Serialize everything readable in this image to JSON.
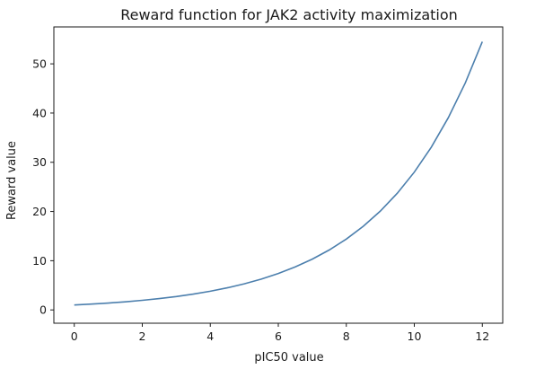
{
  "chart_data": {
    "type": "line",
    "title": "Reward function for JAK2 activity maximization",
    "xlabel": "pIC50 value",
    "ylabel": "Reward value",
    "xlim": [
      -0.6,
      12.6
    ],
    "ylim": [
      -2.7,
      57.5
    ],
    "x_ticks": [
      0,
      2,
      4,
      6,
      8,
      10,
      12
    ],
    "y_ticks": [
      0,
      10,
      20,
      30,
      40,
      50
    ],
    "grid": false,
    "legend": "none",
    "series": [
      {
        "color": "#4c7fad",
        "x": [
          0,
          0.5,
          1,
          1.5,
          2,
          2.5,
          3,
          3.5,
          4,
          4.5,
          5,
          5.5,
          6,
          6.5,
          7,
          7.5,
          8,
          8.5,
          9,
          9.5,
          10,
          10.5,
          11,
          11.5,
          12
        ],
        "y": [
          1.0,
          1.18,
          1.4,
          1.65,
          1.95,
          2.31,
          2.72,
          3.22,
          3.8,
          4.49,
          5.3,
          6.26,
          7.4,
          8.74,
          10.32,
          12.19,
          14.39,
          17.0,
          20.08,
          23.71,
          28.0,
          33.07,
          39.06,
          46.13,
          54.5
        ]
      }
    ]
  }
}
